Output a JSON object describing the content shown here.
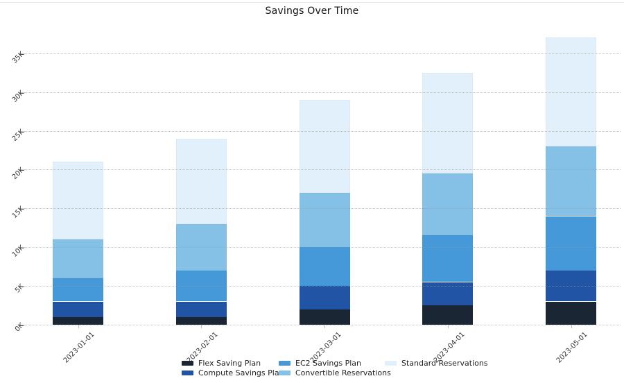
{
  "chart_data": {
    "type": "bar",
    "stacked": true,
    "title": "Savings Over Time",
    "categories": [
      "2023-01-01",
      "2023-02-01",
      "2023-03-01",
      "2023-04-01",
      "2023-05-01"
    ],
    "series": [
      {
        "name": "Flex Saving Plan",
        "color": "#1a2634",
        "values": [
          1000,
          1000,
          2000,
          2500,
          3000
        ]
      },
      {
        "name": "Compute Savings Plan",
        "color": "#2254a5",
        "values": [
          2000,
          2000,
          3000,
          3000,
          4000
        ]
      },
      {
        "name": "EC2 Savings Plan",
        "color": "#4599d8",
        "values": [
          3000,
          4000,
          5000,
          6000,
          7000
        ]
      },
      {
        "name": "Convertible Reservations",
        "color": "#85c1e6",
        "values": [
          5000,
          6000,
          7000,
          8000,
          9000
        ]
      },
      {
        "name": "Standard Reservations",
        "color": "#e1f0fa",
        "values": [
          10000,
          11000,
          12000,
          13000,
          14000
        ]
      }
    ],
    "totals": [
      21000,
      24000,
      29000,
      32500,
      37000
    ],
    "ytick_labels": [
      "0K",
      "5K",
      "10K",
      "15K",
      "20K",
      "25K",
      "30K",
      "35K"
    ],
    "ytick_values": [
      0,
      5000,
      10000,
      15000,
      20000,
      25000,
      30000,
      35000
    ],
    "ylim": [
      0,
      38000
    ],
    "grid": "horizontal-dotted",
    "legend_position": "bottom"
  }
}
